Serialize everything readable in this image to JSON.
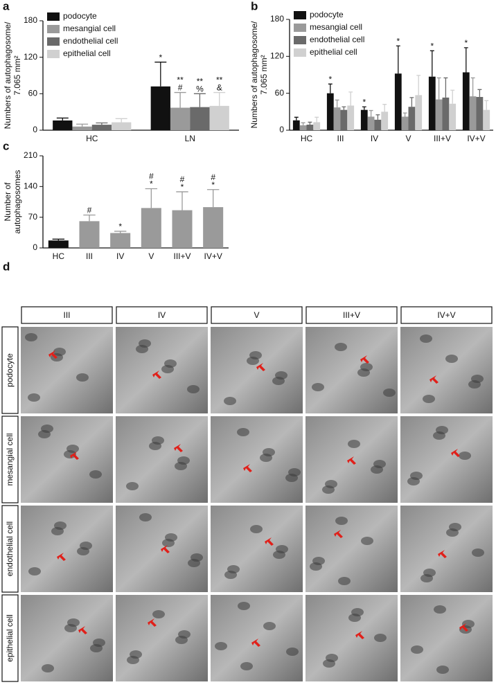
{
  "chart_data": [
    {
      "type": "bar",
      "panel": "a",
      "ylabel": [
        "Numbers of autophagosome/",
        "7.065 mm²"
      ],
      "categories": [
        "HC",
        "LN"
      ],
      "ylim": [
        0,
        180
      ],
      "yticks": [
        0,
        60,
        120,
        180
      ],
      "legend": "upper left",
      "series": [
        {
          "name": "podocyte",
          "color": "#111111",
          "values": [
            16,
            72
          ],
          "errors": [
            4,
            40
          ],
          "annotations": [
            null,
            [
              "*"
            ]
          ]
        },
        {
          "name": "mesangial cell",
          "color": "#9a9a9a",
          "values": [
            6,
            37
          ],
          "errors": [
            4,
            25
          ],
          "annotations": [
            null,
            [
              "**",
              "#"
            ]
          ]
        },
        {
          "name": "endothelial cell",
          "color": "#6a6a6a",
          "values": [
            9,
            38
          ],
          "errors": [
            3,
            22
          ],
          "annotations": [
            null,
            [
              "**",
              "%"
            ]
          ]
        },
        {
          "name": "epithelial cell",
          "color": "#d0d0d0",
          "values": [
            13,
            40
          ],
          "errors": [
            6,
            22
          ],
          "annotations": [
            null,
            [
              "**",
              "&"
            ]
          ]
        }
      ]
    },
    {
      "type": "bar",
      "panel": "b",
      "ylabel": [
        "Numbers of autophagosome/",
        "7.065 mm²"
      ],
      "categories": [
        "HC",
        "III",
        "IV",
        "V",
        "III+V",
        "IV+V"
      ],
      "ylim": [
        0,
        180
      ],
      "yticks": [
        0,
        60,
        120,
        180
      ],
      "legend": "upper left",
      "series": [
        {
          "name": "podocyte",
          "color": "#111111",
          "values": [
            16,
            60,
            33,
            92,
            87,
            94
          ],
          "errors": [
            5,
            15,
            5,
            45,
            42,
            40
          ],
          "annotations": [
            null,
            [
              "*"
            ],
            [
              "*"
            ],
            [
              "*"
            ],
            [
              "*"
            ],
            [
              "*"
            ]
          ]
        },
        {
          "name": "mesangial cell",
          "color": "#9a9a9a",
          "values": [
            8,
            37,
            22,
            22,
            50,
            55
          ],
          "errors": [
            4,
            12,
            10,
            6,
            35,
            30
          ]
        },
        {
          "name": "endothelial cell",
          "color": "#6a6a6a",
          "values": [
            9,
            33,
            17,
            38,
            53,
            54
          ],
          "errors": [
            4,
            5,
            8,
            15,
            32,
            12
          ]
        },
        {
          "name": "epithelial cell",
          "color": "#d0d0d0",
          "values": [
            13,
            40,
            30,
            57,
            43,
            33
          ],
          "errors": [
            8,
            22,
            12,
            32,
            22,
            15
          ]
        }
      ]
    },
    {
      "type": "bar",
      "panel": "c",
      "ylabel": [
        "Number of",
        "autophagosomes"
      ],
      "categories": [
        "HC",
        "III",
        "IV",
        "V",
        "III+V",
        "IV+V"
      ],
      "ylim": [
        0,
        210
      ],
      "yticks": [
        0,
        70,
        140,
        210
      ],
      "values": [
        17,
        61,
        34,
        91,
        86,
        93
      ],
      "errors": [
        3,
        14,
        4,
        44,
        42,
        40
      ],
      "colors": [
        "#111111",
        "#9a9a9a",
        "#9a9a9a",
        "#9a9a9a",
        "#9a9a9a",
        "#9a9a9a"
      ],
      "annotations": [
        null,
        [
          "#"
        ],
        [
          "*"
        ],
        [
          "#",
          "*"
        ],
        [
          "#",
          "*"
        ],
        [
          "#",
          "*"
        ]
      ]
    }
  ],
  "micrographs": {
    "panel": "d",
    "columns": [
      "III",
      "IV",
      "V",
      "III+V",
      "IV+V"
    ],
    "rows": [
      "podocyte",
      "mesangial cell",
      "endothelial cell",
      "epithelial cell"
    ]
  }
}
